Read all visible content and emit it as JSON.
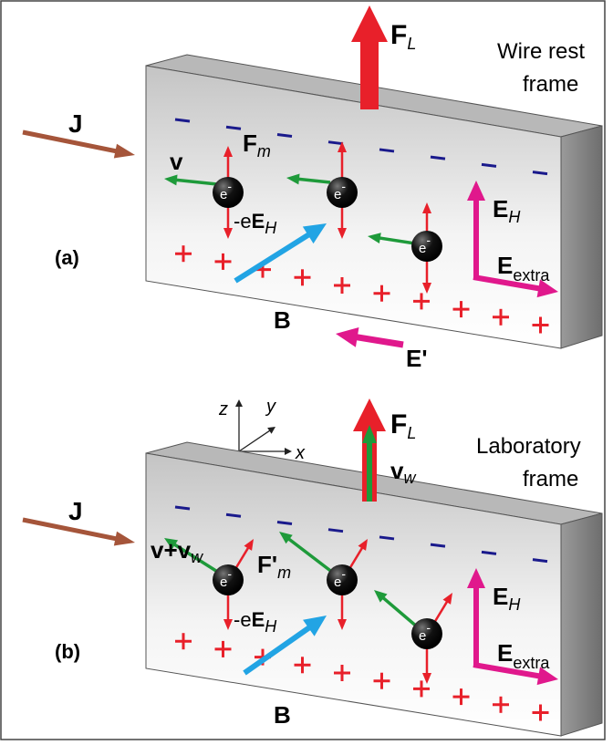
{
  "panel_a": {
    "label": "(a)",
    "frame_title": [
      "Wire rest",
      "frame"
    ],
    "current": "J",
    "lorentz_force": {
      "symbol": "F",
      "sub": "L"
    },
    "velocity": "v",
    "magnetic_force": {
      "symbol": "F",
      "sub": "m"
    },
    "electric_force": {
      "prefix": "-e",
      "symbol": "E",
      "sub": "H"
    },
    "electron": {
      "symbol": "e",
      "sup": "-"
    },
    "hall_field": {
      "symbol": "E",
      "sub": "H"
    },
    "extra_field": {
      "symbol": "E",
      "sub": "extra"
    },
    "magnetic_field": "B",
    "transformed_field": "E'"
  },
  "panel_b": {
    "label": "(b)",
    "frame_title": [
      "Laboratory",
      "frame"
    ],
    "current": "J",
    "axes": {
      "z": "z",
      "y": "y",
      "x": "x"
    },
    "lorentz_force": {
      "symbol": "F",
      "sub": "L"
    },
    "wire_velocity": {
      "symbol": "v",
      "sub": "w"
    },
    "velocity": {
      "symbol": "v+v",
      "sub": "w"
    },
    "magnetic_force": {
      "symbol": "F'",
      "sub": "m"
    },
    "electric_force": {
      "prefix": "-e",
      "symbol": "E",
      "sub": "H"
    },
    "electron": {
      "symbol": "e",
      "sup": "-"
    },
    "hall_field": {
      "symbol": "E",
      "sub": "H"
    },
    "extra_field": {
      "symbol": "E",
      "sub": "extra"
    },
    "magnetic_field": "B"
  }
}
